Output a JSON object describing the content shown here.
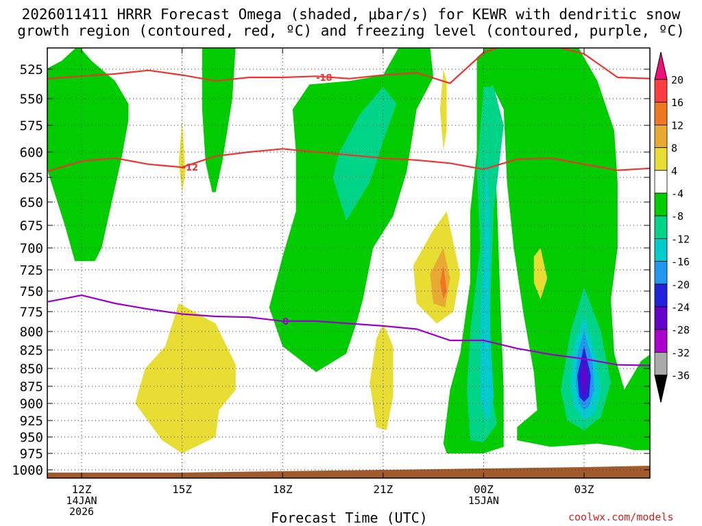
{
  "chart_data": {
    "type": "contour",
    "title_line1": "2026011411 HRRR Forecast Omega (shaded, μbar/s) for KEWR with dendritic snow",
    "title_line2": "growth region (contoured, red, ºC) and freezing level (contoured, purple, ºC)",
    "xlabel": "Forecast Time (UTC)",
    "credit": "coolwx.com/models",
    "x_range": [
      11,
      29
    ],
    "x_ticks": [
      {
        "x": 12,
        "label": "12Z",
        "sub1": "14JAN",
        "sub2": "2026"
      },
      {
        "x": 15,
        "label": "15Z",
        "sub1": "",
        "sub2": ""
      },
      {
        "x": 18,
        "label": "18Z",
        "sub1": "",
        "sub2": ""
      },
      {
        "x": 21,
        "label": "21Z",
        "sub1": "",
        "sub2": ""
      },
      {
        "x": 24,
        "label": "00Z",
        "sub1": "15JAN",
        "sub2": ""
      },
      {
        "x": 27,
        "label": "03Z",
        "sub1": "",
        "sub2": ""
      }
    ],
    "y_ticks": [
      "525",
      "550",
      "575",
      "600",
      "625",
      "650",
      "675",
      "700",
      "725",
      "750",
      "775",
      "800",
      "825",
      "850",
      "875",
      "900",
      "925",
      "950",
      "975",
      "1000"
    ],
    "ylim_hpa": [
      505,
      1005
    ],
    "colorbar": {
      "levels": [
        "20",
        "16",
        "12",
        "8",
        "4",
        "-4",
        "-8",
        "-12",
        "-16",
        "-20",
        "-24",
        "-28",
        "-32",
        "-36"
      ],
      "colors": [
        "#ff0000",
        "#ff3f3f",
        "#ee7722",
        "#e8aa33",
        "#e8dd33",
        "#ffffff",
        "#00cc00",
        "#00d488",
        "#00cccc",
        "#2299ee",
        "#2222dd",
        "#6600cc",
        "#aa00cc",
        "#aaaaaa",
        "#000000"
      ],
      "top_color": "#ee1177"
    },
    "contour_lines": [
      {
        "name": "-18C",
        "color": "#ee3333",
        "label": "-18",
        "label_x": 19.0,
        "label_hpa": 532,
        "points": [
          [
            11,
            533
          ],
          [
            12,
            531
          ],
          [
            13,
            529
          ],
          [
            14,
            526
          ],
          [
            15,
            530
          ],
          [
            16,
            535
          ],
          [
            17,
            532
          ],
          [
            18,
            532
          ],
          [
            19,
            531
          ],
          [
            20,
            533
          ],
          [
            21,
            530
          ],
          [
            22,
            528
          ],
          [
            23,
            537
          ],
          [
            24,
            511
          ],
          [
            25,
            501
          ],
          [
            26,
            505
          ],
          [
            27,
            512
          ],
          [
            28,
            532
          ],
          [
            29,
            533
          ]
        ]
      },
      {
        "name": "-12C",
        "color": "#ee3333",
        "label": "-12",
        "label_x": 15.0,
        "label_hpa": 615,
        "points": [
          [
            11,
            619
          ],
          [
            12,
            609
          ],
          [
            13,
            606
          ],
          [
            14,
            612
          ],
          [
            15,
            615
          ],
          [
            16,
            604
          ],
          [
            17,
            600
          ],
          [
            18,
            597
          ],
          [
            19,
            600
          ],
          [
            20,
            603
          ],
          [
            21,
            606
          ],
          [
            22,
            608
          ],
          [
            23,
            611
          ],
          [
            24,
            617
          ],
          [
            25,
            607
          ],
          [
            26,
            606
          ],
          [
            27,
            612
          ],
          [
            28,
            618
          ],
          [
            29,
            616
          ]
        ]
      },
      {
        "name": "0C",
        "color": "#9900cc",
        "label": "0",
        "label_x": 18.0,
        "label_hpa": 787,
        "points": [
          [
            11,
            763
          ],
          [
            12,
            755
          ],
          [
            13,
            765
          ],
          [
            14,
            772
          ],
          [
            15,
            778
          ],
          [
            16,
            781
          ],
          [
            17,
            782
          ],
          [
            18,
            787
          ],
          [
            19,
            787
          ],
          [
            20,
            790
          ],
          [
            21,
            793
          ],
          [
            22,
            797
          ],
          [
            23,
            812
          ],
          [
            24,
            812
          ],
          [
            25,
            823
          ],
          [
            26,
            831
          ],
          [
            27,
            837
          ],
          [
            28,
            845
          ],
          [
            29,
            846
          ]
        ]
      }
    ],
    "omega_regions": [
      {
        "value": "-4 to -8",
        "color": "#00cc00",
        "polygon": [
          [
            11.0,
            524
          ],
          [
            11.4,
            518
          ],
          [
            11.9,
            505
          ],
          [
            12.3,
            518
          ],
          [
            13.0,
            535
          ],
          [
            13.4,
            555
          ],
          [
            13.4,
            570
          ],
          [
            13.2,
            605
          ],
          [
            12.9,
            650
          ],
          [
            12.6,
            700
          ],
          [
            12.4,
            715
          ],
          [
            11.8,
            715
          ],
          [
            11.5,
            675
          ],
          [
            11.0,
            620
          ],
          [
            10.9,
            580
          ]
        ]
      },
      {
        "value": "-4 to -8",
        "color": "#00cc00",
        "polygon": [
          [
            15.6,
            505
          ],
          [
            16.6,
            505
          ],
          [
            16.5,
            550
          ],
          [
            16.2,
            610
          ],
          [
            16.0,
            640
          ],
          [
            15.9,
            640
          ],
          [
            15.7,
            610
          ],
          [
            15.6,
            560
          ]
        ]
      },
      {
        "value": "-4 to -8",
        "color": "#00cc00",
        "polygon": [
          [
            21.5,
            505
          ],
          [
            22.4,
            505
          ],
          [
            22.5,
            532
          ],
          [
            22.0,
            560
          ],
          [
            21.8,
            600
          ],
          [
            21.7,
            620
          ],
          [
            21.3,
            665
          ],
          [
            20.7,
            700
          ],
          [
            20.4,
            760
          ],
          [
            20.2,
            790
          ],
          [
            19.9,
            830
          ],
          [
            19.0,
            855
          ],
          [
            18.0,
            820
          ],
          [
            17.6,
            770
          ],
          [
            18.0,
            710
          ],
          [
            18.4,
            660
          ],
          [
            18.4,
            600
          ],
          [
            18.3,
            560
          ],
          [
            18.8,
            538
          ],
          [
            20.0,
            535
          ],
          [
            21.0,
            530
          ]
        ]
      },
      {
        "value": "-4 to -8",
        "color": "#00cc00",
        "polygon": [
          [
            24.0,
            505
          ],
          [
            26.8,
            505
          ],
          [
            27.4,
            535
          ],
          [
            27.9,
            580
          ],
          [
            28.0,
            630
          ],
          [
            28.0,
            700
          ],
          [
            27.8,
            760
          ],
          [
            27.9,
            830
          ],
          [
            28.2,
            880
          ],
          [
            28.7,
            840
          ],
          [
            29.0,
            830
          ],
          [
            29.0,
            970
          ],
          [
            28.5,
            970
          ],
          [
            28.1,
            965
          ],
          [
            27.4,
            960
          ],
          [
            26.0,
            965
          ],
          [
            25.0,
            955
          ],
          [
            25.0,
            935
          ],
          [
            25.6,
            910
          ],
          [
            25.5,
            855
          ],
          [
            25.2,
            780
          ],
          [
            24.9,
            700
          ],
          [
            24.7,
            630
          ],
          [
            24.6,
            560
          ],
          [
            24.1,
            530
          ]
        ]
      },
      {
        "value": "-4 to -8",
        "color": "#00cc00",
        "polygon": [
          [
            24.2,
            505
          ],
          [
            23.8,
            515
          ],
          [
            23.8,
            600
          ],
          [
            23.6,
            660
          ],
          [
            23.6,
            740
          ],
          [
            23.3,
            830
          ],
          [
            23.0,
            880
          ],
          [
            22.8,
            960
          ],
          [
            22.9,
            975
          ],
          [
            24.0,
            975
          ],
          [
            24.6,
            965
          ],
          [
            24.6,
            880
          ],
          [
            24.5,
            760
          ],
          [
            24.4,
            650
          ]
        ]
      },
      {
        "value": "-8 to -12",
        "color": "#00d488",
        "polygon": [
          [
            21.0,
            540
          ],
          [
            20.3,
            565
          ],
          [
            19.7,
            600
          ],
          [
            19.5,
            625
          ],
          [
            19.9,
            670
          ],
          [
            20.6,
            630
          ],
          [
            21.0,
            590
          ],
          [
            21.4,
            555
          ]
        ]
      },
      {
        "value": "-8 to -12",
        "color": "#00d488",
        "polygon": [
          [
            24.0,
            540
          ],
          [
            24.3,
            540
          ],
          [
            24.6,
            575
          ],
          [
            24.3,
            660
          ],
          [
            24.2,
            760
          ],
          [
            24.1,
            850
          ],
          [
            24.4,
            930
          ],
          [
            24.0,
            958
          ],
          [
            23.6,
            955
          ],
          [
            23.5,
            880
          ],
          [
            23.6,
            800
          ],
          [
            23.9,
            700
          ],
          [
            23.8,
            620
          ]
        ]
      },
      {
        "value": "-8 to -12",
        "color": "#00d488",
        "polygon": [
          [
            27.0,
            745
          ],
          [
            27.5,
            800
          ],
          [
            27.8,
            870
          ],
          [
            27.5,
            920
          ],
          [
            27.0,
            940
          ],
          [
            26.5,
            925
          ],
          [
            26.3,
            880
          ],
          [
            26.6,
            800
          ]
        ]
      },
      {
        "value": "-12 to -16",
        "color": "#00cccc",
        "polygon": [
          [
            24.1,
            600
          ],
          [
            24.2,
            700
          ],
          [
            24.2,
            800
          ],
          [
            24.3,
            890
          ],
          [
            24.1,
            930
          ],
          [
            23.9,
            895
          ],
          [
            23.9,
            800
          ],
          [
            24.0,
            700
          ]
        ]
      },
      {
        "value": "-12 to -16",
        "color": "#00cccc",
        "polygon": [
          [
            27.0,
            780
          ],
          [
            27.35,
            830
          ],
          [
            27.5,
            880
          ],
          [
            27.3,
            915
          ],
          [
            27.0,
            925
          ],
          [
            26.7,
            905
          ],
          [
            26.6,
            870
          ],
          [
            26.7,
            820
          ]
        ]
      },
      {
        "value": "-16 to -20",
        "color": "#2299ee",
        "polygon": [
          [
            27.0,
            800
          ],
          [
            27.25,
            840
          ],
          [
            27.3,
            880
          ],
          [
            27.15,
            905
          ],
          [
            27.0,
            910
          ],
          [
            26.85,
            900
          ],
          [
            26.75,
            870
          ],
          [
            26.8,
            830
          ]
        ]
      },
      {
        "value": "-20 to -24",
        "color": "#2222dd",
        "polygon": [
          [
            27.0,
            820
          ],
          [
            27.2,
            860
          ],
          [
            27.15,
            890
          ],
          [
            27.0,
            898
          ],
          [
            26.85,
            890
          ],
          [
            26.8,
            860
          ]
        ]
      },
      {
        "value": "-24 to -28",
        "color": "#6600cc",
        "polygon": [
          [
            27.0,
            835
          ],
          [
            27.1,
            860
          ],
          [
            27.05,
            885
          ],
          [
            27.0,
            890
          ],
          [
            26.95,
            885
          ],
          [
            26.9,
            860
          ]
        ]
      },
      {
        "value": "4 to 8",
        "color": "#e8dd33",
        "polygon": [
          [
            14.9,
            765
          ],
          [
            16.0,
            790
          ],
          [
            16.6,
            845
          ],
          [
            16.6,
            880
          ],
          [
            16.1,
            910
          ],
          [
            16.0,
            950
          ],
          [
            15.0,
            975
          ],
          [
            14.4,
            955
          ],
          [
            13.9,
            920
          ],
          [
            13.6,
            900
          ],
          [
            13.9,
            850
          ],
          [
            14.5,
            820
          ]
        ]
      },
      {
        "value": "4 to 8",
        "color": "#e8dd33",
        "polygon": [
          [
            21.0,
            790
          ],
          [
            21.3,
            820
          ],
          [
            21.3,
            890
          ],
          [
            21.1,
            940
          ],
          [
            20.8,
            935
          ],
          [
            20.6,
            870
          ],
          [
            20.8,
            810
          ]
        ]
      },
      {
        "value": "4 to 8",
        "color": "#e8dd33",
        "polygon": [
          [
            22.9,
            660
          ],
          [
            23.3,
            730
          ],
          [
            23.1,
            775
          ],
          [
            22.6,
            790
          ],
          [
            22.0,
            765
          ],
          [
            21.9,
            720
          ],
          [
            22.5,
            680
          ]
        ]
      },
      {
        "value": "4 to 8",
        "color": "#e8dd33",
        "polygon": [
          [
            22.9,
            535
          ],
          [
            22.9,
            580
          ],
          [
            22.8,
            598
          ],
          [
            22.7,
            560
          ],
          [
            22.8,
            525
          ]
        ]
      },
      {
        "value": "4 to 8",
        "color": "#e8dd33",
        "polygon": [
          [
            15.0,
            570
          ],
          [
            15.1,
            620
          ],
          [
            15.0,
            640
          ],
          [
            14.9,
            610
          ]
        ]
      },
      {
        "value": "4 to 8",
        "color": "#e8dd33",
        "polygon": [
          [
            25.7,
            700
          ],
          [
            25.9,
            735
          ],
          [
            25.7,
            760
          ],
          [
            25.5,
            740
          ],
          [
            25.5,
            710
          ]
        ]
      },
      {
        "value": "8 to 12",
        "color": "#e8aa33",
        "polygon": [
          [
            22.8,
            700
          ],
          [
            23.0,
            735
          ],
          [
            22.85,
            770
          ],
          [
            22.5,
            765
          ],
          [
            22.4,
            730
          ]
        ]
      },
      {
        "value": "12 to 16",
        "color": "#ee7722",
        "polygon": [
          [
            22.8,
            720
          ],
          [
            22.9,
            750
          ],
          [
            22.8,
            760
          ],
          [
            22.7,
            740
          ]
        ]
      }
    ],
    "terrain_color": "#a05a2c"
  }
}
